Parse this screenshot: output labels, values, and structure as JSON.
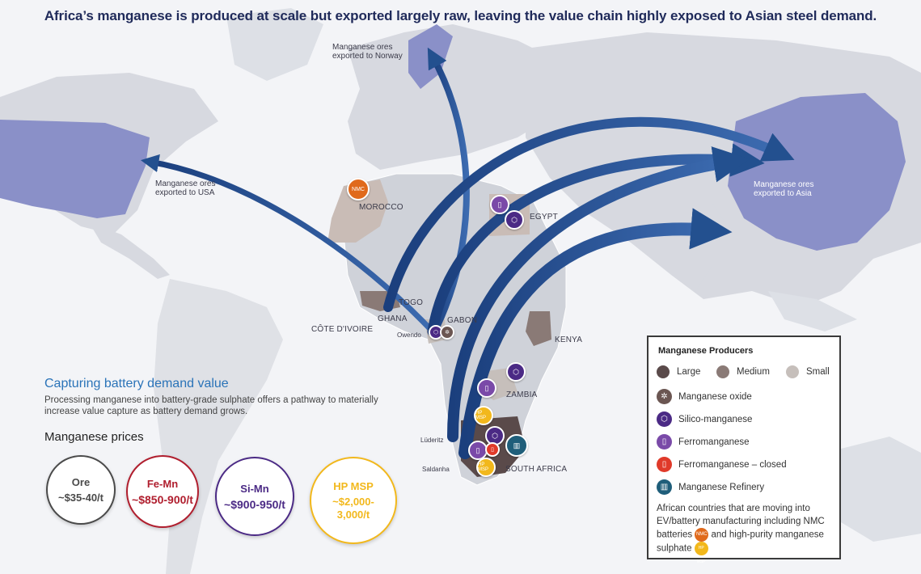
{
  "title": "Africa’s manganese is produced at scale but exported largely raw, leaving the value chain highly exposed to Asian steel demand.",
  "flow_labels": {
    "norway": [
      "Manganese ores",
      "exported to Norway"
    ],
    "usa": [
      "Manganese ores",
      "exported to USA"
    ],
    "asia": [
      "Manganese ores",
      "exported to Asia"
    ]
  },
  "countries": {
    "morocco": "MOROCCO",
    "egypt": "EGYPT",
    "togo": "TOGO",
    "ghana": "GHANA",
    "cote": "CÔTE D'IVOIRE",
    "gabon": "GABON",
    "kenya": "KENYA",
    "zambia": "ZAMBIA",
    "south_africa": "SOUTH AFRICA"
  },
  "cities": {
    "owendo": "Owendo",
    "luderitz": "Lüderitz",
    "saldanha": "Saldanha"
  },
  "side_panel": {
    "heading": "Capturing battery demand value",
    "body": "Processing manganese into battery-grade sulphate offers a pathway to materially increase value capture as battery demand grows.",
    "prices_title": "Manganese prices",
    "prices": [
      {
        "name": "Ore",
        "value": "~$35-40/t",
        "color": "#4a4a4a"
      },
      {
        "name": "Fe-Mn",
        "value": "~$850-900/t",
        "color": "#b01e2e"
      },
      {
        "name": "Si-Mn",
        "value": "~$900-950/t",
        "color": "#4b2a85"
      },
      {
        "name": "HP MSP",
        "value": "~$2,000-3,000/t",
        "color": "#f2b81c"
      }
    ]
  },
  "legend": {
    "title": "Manganese Producers",
    "sizes": [
      {
        "label": "Large",
        "color": "#5a4a4a"
      },
      {
        "label": "Medium",
        "color": "#8a7a76"
      },
      {
        "label": "Small",
        "color": "#c6bfbb"
      }
    ],
    "items": [
      {
        "label": "Manganese oxide",
        "color": "#6b5652",
        "icon": "oxide-icon"
      },
      {
        "label": "Silico-manganese",
        "color": "#4b2a85",
        "icon": "silico-icon"
      },
      {
        "label": "Ferromanganese",
        "color": "#7a4aa8",
        "icon": "ferro-icon"
      },
      {
        "label": "Ferromanganese – closed",
        "color": "#e03a2a",
        "icon": "ferro-closed-icon"
      },
      {
        "label": "Manganese Refinery",
        "color": "#1f5e7a",
        "icon": "refinery-icon"
      }
    ],
    "note_1": "African countries that are moving into EV/battery manufacturing including NMC batteries",
    "note_2": "and high-purity manganese sulphate",
    "nmc_badge": "NMC",
    "hpmsp_badge": "HP MSP",
    "nmc_color": "#e06a1c",
    "hpmsp_color": "#f2b81c"
  }
}
